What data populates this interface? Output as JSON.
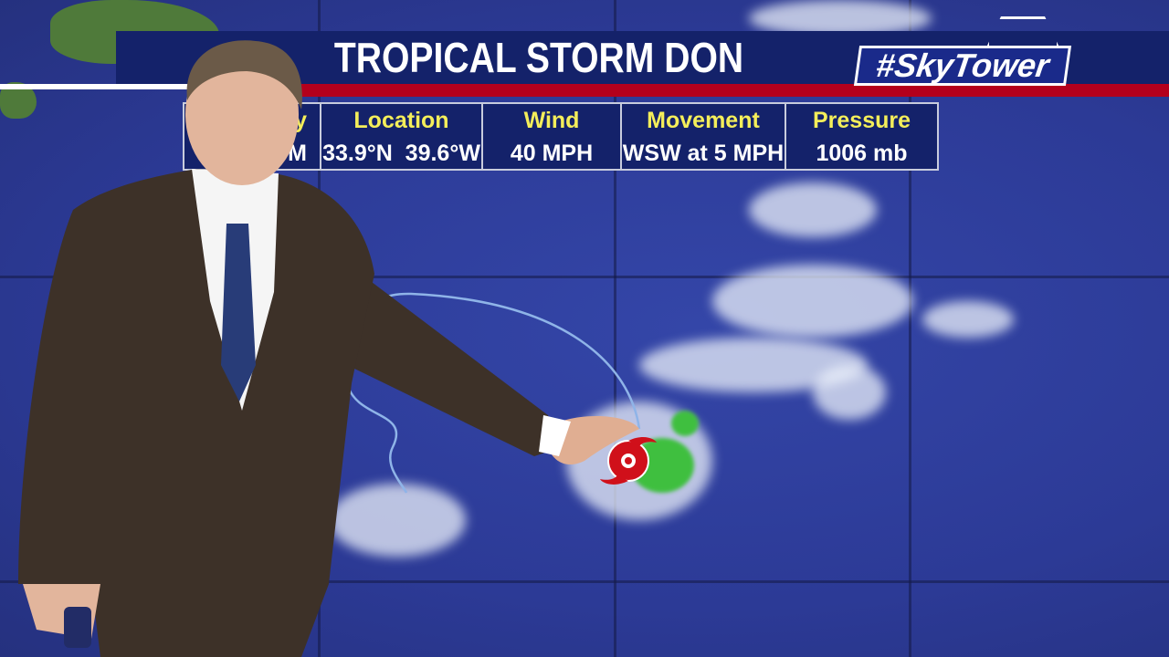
{
  "header": {
    "title": "TROPICAL STORM DON",
    "logo": "#SkyTower"
  },
  "info_table": [
    {
      "label": "y",
      "value": "M"
    },
    {
      "label": "Location",
      "value": "33.9°N  39.6°W"
    },
    {
      "label": "Wind",
      "value": "40 MPH"
    },
    {
      "label": "Movement",
      "value": "WSW at 5 MPH"
    },
    {
      "label": "Pressure",
      "value": "1006 mb"
    }
  ],
  "colors": {
    "header_bg": "#14226a",
    "accent_red": "#b4001c",
    "label_yellow": "#f4ee5a",
    "ocean": "#2e3c9a",
    "storm_icon": "#d0101a"
  },
  "icons": {
    "storm": "tropical-storm-icon"
  }
}
